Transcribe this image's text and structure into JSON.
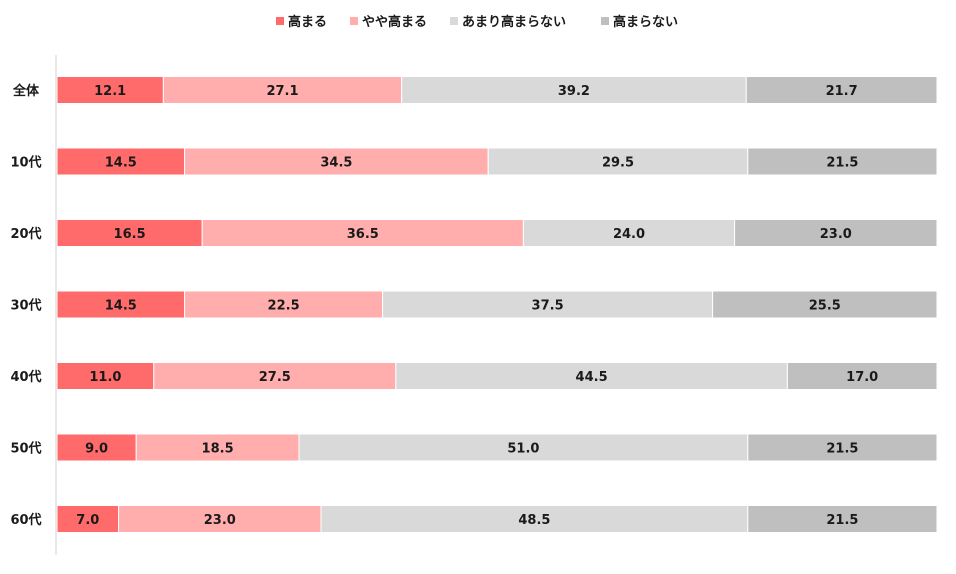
{
  "chart_data": {
    "type": "bar",
    "orientation": "horizontal",
    "stacked": "100%",
    "legend_position": "top-center",
    "grid": false,
    "categories": [
      "全体",
      "10代",
      "20代",
      "30代",
      "40代",
      "50代",
      "60代"
    ],
    "series": [
      {
        "name": "高まる",
        "color": "#ff6b6b",
        "values": [
          12.1,
          14.5,
          16.5,
          14.5,
          11.0,
          9.0,
          7.0
        ]
      },
      {
        "name": "やや高まる",
        "color": "#ffadad",
        "values": [
          27.1,
          34.5,
          36.5,
          22.5,
          27.5,
          18.5,
          23.0
        ]
      },
      {
        "name": "あまり高まらない",
        "color": "#d9d9d9",
        "values": [
          39.2,
          29.5,
          24.0,
          37.5,
          44.5,
          51.0,
          48.5
        ]
      },
      {
        "name": "高まらない",
        "color": "#bfbfbf",
        "values": [
          21.7,
          21.5,
          23.0,
          25.5,
          17.0,
          21.5,
          21.5
        ]
      }
    ]
  }
}
